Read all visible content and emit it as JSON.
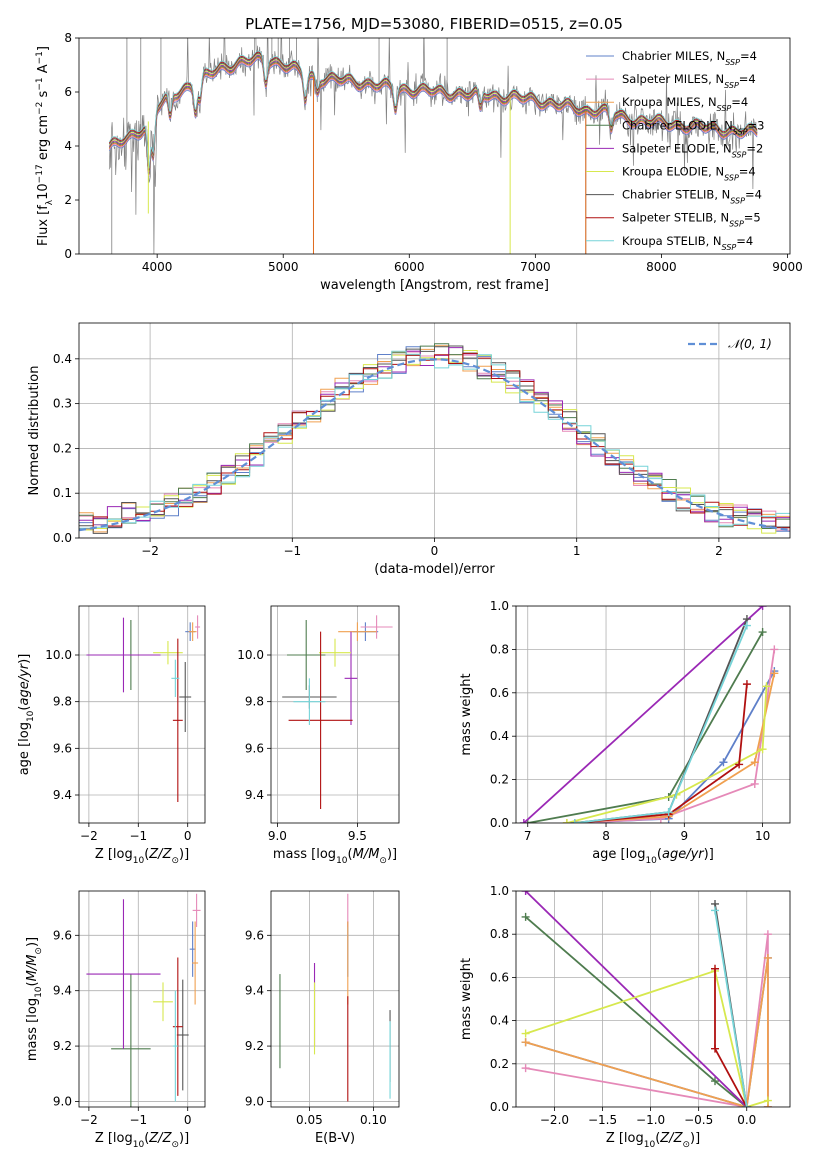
{
  "figure": {
    "title": "PLATE=1756, MJD=53080, FIBERID=0515, z=0.05"
  },
  "colors": {
    "Chabrier MILES": "#5f80c9",
    "Salpeter MILES": "#e589b8",
    "Kroupa MILES": "#f0a050",
    "Chabrier ELODIE": "#4f7c4f",
    "Salpeter ELODIE": "#9a28b5",
    "Kroupa ELODIE": "#d7e84e",
    "Chabrier STELIB": "#555555",
    "Salpeter STELIB": "#b01010",
    "Kroupa STELIB": "#76d4d8",
    "data": "#808080",
    "kroupa_miles_line": "#e06a1e",
    "gaussian": "#5f8fd6"
  },
  "chart_data": [
    {
      "id": "spectrum",
      "type": "line",
      "xlabel": "wavelength [Angstrom, rest frame]",
      "ylabel": "Flux [fλ 10^-17 erg cm^-2 s^-1 A^-1]",
      "xlim": [
        3380,
        9020
      ],
      "ylim": [
        0,
        8
      ],
      "xticks": [
        4000,
        5000,
        6000,
        7000,
        8000,
        9000
      ],
      "yticks": [
        0,
        2,
        4,
        6,
        8
      ],
      "grid": false,
      "legend_position": "top-right",
      "legend": [
        {
          "name": "Chabrier MILES",
          "nssp": "4"
        },
        {
          "name": "Salpeter MILES",
          "nssp": "4"
        },
        {
          "name": "Kroupa MILES",
          "nssp": "4"
        },
        {
          "name": "Chabrier ELODIE",
          "nssp": "3"
        },
        {
          "name": "Salpeter ELODIE",
          "nssp": "2"
        },
        {
          "name": "Kroupa ELODIE",
          "nssp": "4"
        },
        {
          "name": "Chabrier STELIB",
          "nssp": "4"
        },
        {
          "name": "Salpeter STELIB",
          "nssp": "5"
        },
        {
          "name": "Kroupa STELIB",
          "nssp": "4"
        }
      ],
      "data_range": [
        3620,
        8760
      ],
      "continuum": [
        [
          3620,
          3.9
        ],
        [
          3700,
          4.1
        ],
        [
          3800,
          4.4
        ],
        [
          3900,
          4.7
        ],
        [
          4000,
          5.4
        ],
        [
          4100,
          5.8
        ],
        [
          4200,
          6.1
        ],
        [
          4300,
          6.3
        ],
        [
          4400,
          6.6
        ],
        [
          4500,
          6.9
        ],
        [
          4600,
          7.0
        ],
        [
          4700,
          7.1
        ],
        [
          4800,
          7.2
        ],
        [
          4900,
          7.2
        ],
        [
          5000,
          7.0
        ],
        [
          5100,
          6.8
        ],
        [
          5200,
          6.6
        ],
        [
          5300,
          6.5
        ],
        [
          5400,
          6.45
        ],
        [
          5500,
          6.4
        ],
        [
          5600,
          6.35
        ],
        [
          5700,
          6.3
        ],
        [
          5800,
          6.2
        ],
        [
          5900,
          6.1
        ],
        [
          6000,
          6.1
        ],
        [
          6100,
          6.05
        ],
        [
          6200,
          6.0
        ],
        [
          6300,
          5.95
        ],
        [
          6400,
          5.95
        ],
        [
          6500,
          5.9
        ],
        [
          6600,
          5.9
        ],
        [
          6700,
          5.85
        ],
        [
          6800,
          5.8
        ],
        [
          6900,
          5.75
        ],
        [
          7000,
          5.7
        ],
        [
          7100,
          5.6
        ],
        [
          7200,
          5.5
        ],
        [
          7300,
          5.4
        ],
        [
          7400,
          5.3
        ],
        [
          7500,
          5.35
        ],
        [
          7600,
          5.2
        ],
        [
          7700,
          5.05
        ],
        [
          7800,
          4.95
        ],
        [
          7900,
          4.9
        ],
        [
          8000,
          4.85
        ],
        [
          8100,
          4.8
        ],
        [
          8200,
          4.75
        ],
        [
          8300,
          4.7
        ],
        [
          8400,
          4.65
        ],
        [
          8500,
          4.6
        ],
        [
          8600,
          4.5
        ],
        [
          8700,
          4.5
        ],
        [
          8760,
          4.55
        ]
      ]
    },
    {
      "id": "residuals",
      "type": "histogram",
      "xlabel": "(data-model)/error",
      "ylabel": "Normed distribution",
      "xlim": [
        -2.5,
        2.5
      ],
      "ylim": [
        0,
        0.48
      ],
      "xticks": [
        -2,
        -1,
        0,
        1,
        2
      ],
      "yticks": [
        0.0,
        0.1,
        0.2,
        0.3,
        0.4
      ],
      "grid": true,
      "bin_width": 0.1,
      "gaussian": {
        "label": "𝒩(0, 1)",
        "mean": 0,
        "sigma": 1
      },
      "legend_position": "top-right"
    },
    {
      "id": "age-vs-Z",
      "type": "errorbar",
      "xlabel": "Z [log10(Z/Z⊙)]",
      "ylabel": "age [log10(age/yr)]",
      "xlim": [
        -2.2,
        0.35
      ],
      "ylim": [
        9.28,
        10.21
      ],
      "xticks": [
        -2,
        -1,
        0
      ],
      "yticks": [
        9.4,
        9.6,
        9.8,
        10.0
      ],
      "grid": true,
      "points": [
        {
          "model": "Chabrier MILES",
          "x": 0.05,
          "y": 10.1,
          "xerr": 0.1,
          "yerr": 0.04
        },
        {
          "model": "Salpeter MILES",
          "x": 0.2,
          "y": 10.12,
          "xerr": 0.05,
          "yerr": 0.05
        },
        {
          "model": "Kroupa MILES",
          "x": 0.1,
          "y": 10.1,
          "xerr": 0.08,
          "yerr": 0.04
        },
        {
          "model": "Chabrier ELODIE",
          "x": -1.15,
          "y": 10.0,
          "xerr": 0.55,
          "yerr": 0.15
        },
        {
          "model": "Salpeter ELODIE",
          "x": -1.3,
          "y": 10.0,
          "xerr": 0.75,
          "yerr": 0.16
        },
        {
          "model": "Kroupa ELODIE",
          "x": -0.4,
          "y": 10.01,
          "xerr": 0.3,
          "yerr": 0.05
        },
        {
          "model": "Chabrier STELIB",
          "x": -0.05,
          "y": 9.82,
          "xerr": 0.12,
          "yerr": 0.15
        },
        {
          "model": "Salpeter STELIB",
          "x": -0.2,
          "y": 9.72,
          "xerr": 0.1,
          "yerr": 0.35
        },
        {
          "model": "Kroupa STELIB",
          "x": -0.25,
          "y": 9.9,
          "xerr": 0.08,
          "yerr": 0.08
        }
      ]
    },
    {
      "id": "age-vs-mass",
      "type": "errorbar",
      "xlabel": "mass [log10(M/M⊙)]",
      "ylabel": "",
      "xlim": [
        8.96,
        9.76
      ],
      "ylim": [
        9.28,
        10.21
      ],
      "xticks": [
        9.0,
        9.5
      ],
      "yticks": [
        9.4,
        9.6,
        9.8,
        10.0
      ],
      "grid": true,
      "points": [
        {
          "model": "Chabrier MILES",
          "x": 9.55,
          "y": 10.1,
          "xerr": 0.08,
          "yerr": 0.04
        },
        {
          "model": "Salpeter MILES",
          "x": 9.62,
          "y": 10.12,
          "xerr": 0.1,
          "yerr": 0.05
        },
        {
          "model": "Kroupa MILES",
          "x": 9.5,
          "y": 10.1,
          "xerr": 0.12,
          "yerr": 0.04
        },
        {
          "model": "Chabrier ELODIE",
          "x": 9.18,
          "y": 10.0,
          "xerr": 0.12,
          "yerr": 0.15
        },
        {
          "model": "Salpeter ELODIE",
          "x": 9.46,
          "y": 9.9,
          "xerr": 0.04,
          "yerr": 0.2
        },
        {
          "model": "Kroupa ELODIE",
          "x": 9.36,
          "y": 10.01,
          "xerr": 0.1,
          "yerr": 0.06
        },
        {
          "model": "Chabrier STELIB",
          "x": 9.2,
          "y": 9.82,
          "xerr": 0.17,
          "yerr": 0.05
        },
        {
          "model": "Salpeter STELIB",
          "x": 9.27,
          "y": 9.72,
          "xerr": 0.2,
          "yerr": 0.38
        },
        {
          "model": "Kroupa STELIB",
          "x": 9.2,
          "y": 9.8,
          "xerr": 0.1,
          "yerr": 0.1
        }
      ]
    },
    {
      "id": "weight-vs-age",
      "type": "line",
      "xlabel": "age [log10(age/yr)]",
      "ylabel": "mass weight",
      "xlim": [
        6.85,
        10.35
      ],
      "ylim": [
        0,
        1
      ],
      "xticks": [
        7,
        8,
        9,
        10
      ],
      "yticks": [
        0.0,
        0.2,
        0.4,
        0.6,
        0.8,
        1.0
      ],
      "grid": true,
      "series": [
        {
          "model": "Chabrier MILES",
          "points": [
            [
              7.6,
              0.0
            ],
            [
              8.8,
              0.02
            ],
            [
              9.5,
              0.28
            ],
            [
              10.15,
              0.7
            ]
          ]
        },
        {
          "model": "Salpeter MILES",
          "points": [
            [
              7.6,
              0.0
            ],
            [
              8.7,
              0.02
            ],
            [
              9.9,
              0.18
            ],
            [
              10.15,
              0.8
            ]
          ]
        },
        {
          "model": "Kroupa MILES",
          "points": [
            [
              7.5,
              0.0
            ],
            [
              8.8,
              0.03
            ],
            [
              9.9,
              0.28
            ],
            [
              10.15,
              0.69
            ]
          ]
        },
        {
          "model": "Chabrier ELODIE",
          "points": [
            [
              7.0,
              0.0
            ],
            [
              8.8,
              0.12
            ],
            [
              10.0,
              0.88
            ]
          ]
        },
        {
          "model": "Salpeter ELODIE",
          "points": [
            [
              6.95,
              0.0
            ],
            [
              10.0,
              1.0
            ]
          ]
        },
        {
          "model": "Kroupa ELODIE",
          "points": [
            [
              7.5,
              0.0
            ],
            [
              8.9,
              0.13
            ],
            [
              10.0,
              0.34
            ],
            [
              10.05,
              0.63
            ]
          ]
        },
        {
          "model": "Chabrier STELIB",
          "points": [
            [
              7.6,
              0.0
            ],
            [
              8.8,
              0.05
            ],
            [
              9.8,
              0.94
            ]
          ]
        },
        {
          "model": "Salpeter STELIB",
          "points": [
            [
              7.6,
              0.0
            ],
            [
              8.8,
              0.04
            ],
            [
              9.7,
              0.27
            ],
            [
              9.8,
              0.64
            ]
          ]
        },
        {
          "model": "Kroupa STELIB",
          "points": [
            [
              7.6,
              0.0
            ],
            [
              8.8,
              0.05
            ],
            [
              9.8,
              0.91
            ]
          ]
        }
      ]
    },
    {
      "id": "mass-vs-Z",
      "type": "errorbar",
      "xlabel": "Z [log10(Z/Z⊙)]",
      "ylabel": "mass [log10(M/M⊙)]",
      "xlim": [
        -2.2,
        0.35
      ],
      "ylim": [
        8.98,
        9.76
      ],
      "xticks": [
        -2,
        -1,
        0
      ],
      "yticks": [
        9.0,
        9.2,
        9.4,
        9.6
      ],
      "grid": true,
      "points": [
        {
          "model": "Chabrier MILES",
          "x": 0.1,
          "y": 9.55,
          "xerr": 0.06,
          "yerr": 0.1
        },
        {
          "model": "Salpeter MILES",
          "x": 0.18,
          "y": 9.69,
          "xerr": 0.08,
          "yerr": 0.06
        },
        {
          "model": "Kroupa MILES",
          "x": 0.15,
          "y": 9.5,
          "xerr": 0.06,
          "yerr": 0.15
        },
        {
          "model": "Chabrier ELODIE",
          "x": -1.15,
          "y": 9.19,
          "xerr": 0.4,
          "yerr": 0.27
        },
        {
          "model": "Salpeter ELODIE",
          "x": -1.3,
          "y": 9.46,
          "xerr": 0.75,
          "yerr": 0.27
        },
        {
          "model": "Kroupa ELODIE",
          "x": -0.5,
          "y": 9.36,
          "xerr": 0.2,
          "yerr": 0.07
        },
        {
          "model": "Chabrier STELIB",
          "x": -0.1,
          "y": 9.24,
          "xerr": 0.12,
          "yerr": 0.2
        },
        {
          "model": "Salpeter STELIB",
          "x": -0.2,
          "y": 9.27,
          "xerr": 0.1,
          "yerr": 0.25
        },
        {
          "model": "Kroupa STELIB",
          "x": -0.25,
          "y": 9.2,
          "xerr": 0.05,
          "yerr": 0.2
        }
      ]
    },
    {
      "id": "mass-vs-ebv",
      "type": "errorbar",
      "xlabel": "E(B-V)",
      "ylabel": "",
      "xlim": [
        0.02,
        0.12
      ],
      "ylim": [
        8.98,
        9.76
      ],
      "xticks": [
        0.05,
        0.1
      ],
      "yticks": [
        9.0,
        9.2,
        9.4,
        9.6
      ],
      "grid": true,
      "points": [
        {
          "model": "Chabrier MILES",
          "x": 0.08,
          "y": 9.55,
          "xerr": 0,
          "yerr": 0.1
        },
        {
          "model": "Salpeter MILES",
          "x": 0.08,
          "y": 9.69,
          "xerr": 0,
          "yerr": 0.06
        },
        {
          "model": "Kroupa MILES",
          "x": 0.08,
          "y": 9.5,
          "xerr": 0,
          "yerr": 0.15
        },
        {
          "model": "Chabrier ELODIE",
          "x": 0.027,
          "y": 9.29,
          "xerr": 0,
          "yerr": 0.17
        },
        {
          "model": "Salpeter ELODIE",
          "x": 0.054,
          "y": 9.35,
          "xerr": 0,
          "yerr": 0.15
        },
        {
          "model": "Kroupa ELODIE",
          "x": 0.054,
          "y": 9.3,
          "xerr": 0,
          "yerr": 0.13
        },
        {
          "model": "Chabrier STELIB",
          "x": 0.113,
          "y": 9.2,
          "xerr": 0,
          "yerr": 0.13
        },
        {
          "model": "Salpeter STELIB",
          "x": 0.08,
          "y": 9.19,
          "xerr": 0,
          "yerr": 0.19
        },
        {
          "model": "Kroupa STELIB",
          "x": 0.113,
          "y": 9.15,
          "xerr": 0,
          "yerr": 0.14
        }
      ]
    },
    {
      "id": "weight-vs-Z",
      "type": "line",
      "xlabel": "Z [log10(Z/Z⊙)]",
      "ylabel": "mass weight",
      "xlim": [
        -2.4,
        0.45
      ],
      "ylim": [
        0,
        1
      ],
      "xticks": [
        -2.0,
        -1.5,
        -1.0,
        -0.5,
        0.0
      ],
      "yticks": [
        0.0,
        0.2,
        0.4,
        0.6,
        0.8,
        1.0
      ],
      "grid": true,
      "series": [
        {
          "model": "Chabrier MILES",
          "points": [
            [
              -2.3,
              0.3
            ],
            [
              0.0,
              0.0
            ],
            [
              0.22,
              0.69
            ],
            [
              0.22,
              0.0
            ]
          ]
        },
        {
          "model": "Salpeter MILES",
          "points": [
            [
              -2.3,
              0.18
            ],
            [
              0.0,
              0.0
            ],
            [
              0.22,
              0.8
            ],
            [
              0.22,
              0.0
            ]
          ]
        },
        {
          "model": "Kroupa MILES",
          "points": [
            [
              -2.3,
              0.3
            ],
            [
              0.0,
              0.0
            ],
            [
              0.22,
              0.69
            ],
            [
              0.22,
              0.0
            ]
          ]
        },
        {
          "model": "Chabrier ELODIE",
          "points": [
            [
              -2.3,
              0.88
            ],
            [
              -0.33,
              0.12
            ],
            [
              0.0,
              0.0
            ]
          ]
        },
        {
          "model": "Salpeter ELODIE",
          "points": [
            [
              -2.3,
              1.0
            ],
            [
              0.0,
              0.0
            ]
          ]
        },
        {
          "model": "Kroupa ELODIE",
          "points": [
            [
              -2.3,
              0.34
            ],
            [
              -0.33,
              0.63
            ],
            [
              0.0,
              0.0
            ],
            [
              0.22,
              0.03
            ]
          ]
        },
        {
          "model": "Chabrier STELIB",
          "points": [
            [
              -0.33,
              0.94
            ],
            [
              0.0,
              0.0
            ]
          ]
        },
        {
          "model": "Salpeter STELIB",
          "points": [
            [
              -0.33,
              0.64
            ],
            [
              -0.33,
              0.27
            ],
            [
              0.0,
              0.0
            ]
          ]
        },
        {
          "model": "Kroupa STELIB",
          "points": [
            [
              -0.33,
              0.91
            ],
            [
              0.0,
              0.0
            ]
          ]
        }
      ]
    }
  ]
}
